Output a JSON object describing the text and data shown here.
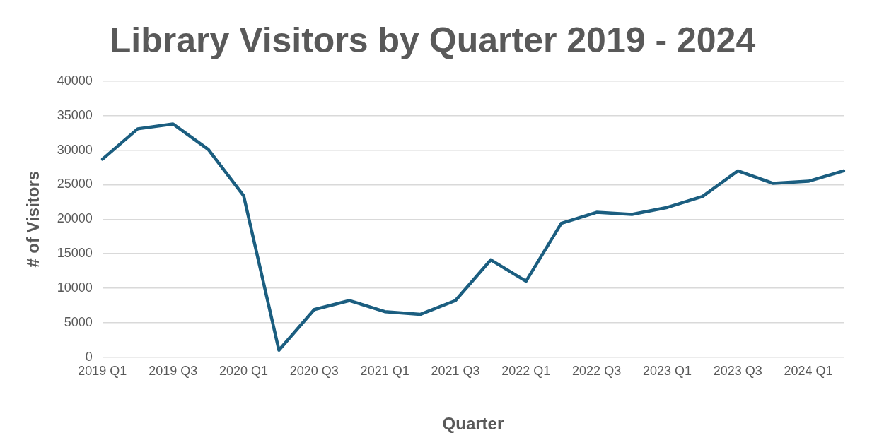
{
  "chart_data": {
    "type": "line",
    "title": "Library Visitors by Quarter 2019 - 2024",
    "xlabel": "Quarter",
    "ylabel": "# of Visitors",
    "categories": [
      "2019 Q1",
      null,
      "2019 Q3",
      null,
      "2020 Q1",
      null,
      "2020 Q3",
      null,
      "2021 Q1",
      null,
      "2021 Q3",
      null,
      "2022 Q1",
      null,
      "2022 Q3",
      null,
      "2023 Q1",
      null,
      "2023 Q3",
      null,
      "2024 Q1",
      null
    ],
    "series": [
      {
        "color": "#1b5e80",
        "values": [
          28700,
          33100,
          33800,
          30100,
          23400,
          1000,
          6900,
          8200,
          6600,
          6200,
          8200,
          14100,
          11000,
          19400,
          21000,
          20700,
          21700,
          23300,
          27000,
          25200,
          25500,
          27000
        ]
      }
    ],
    "ylim": [
      0,
      40000
    ],
    "yticks": [
      0,
      5000,
      10000,
      15000,
      20000,
      25000,
      30000,
      35000,
      40000
    ],
    "grid": "y",
    "legend": false,
    "marker": "none",
    "line_style": "solid"
  }
}
